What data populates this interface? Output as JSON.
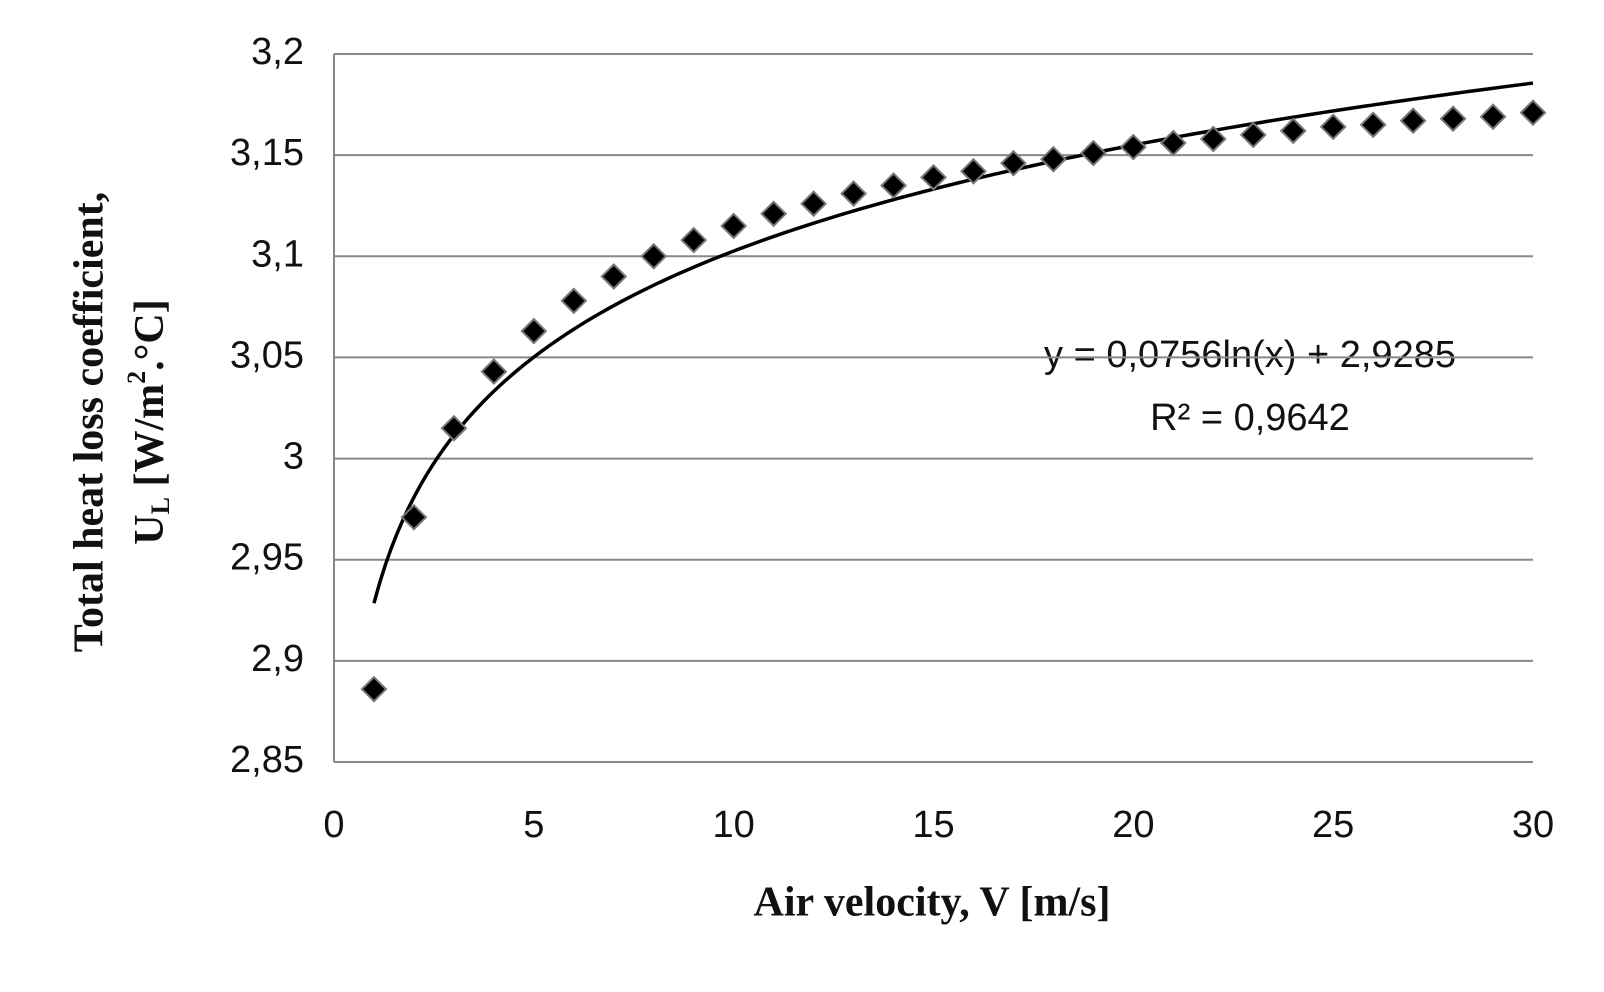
{
  "chart_data": {
    "type": "scatter",
    "x_label": "Air velocity, V [m/s]",
    "y_label": {
      "line1": "Total heat loss coefficient,",
      "line2": [
        "U",
        "L",
        " [W/m",
        "2",
        ".°C]"
      ]
    },
    "x": [
      1,
      2,
      3,
      4,
      5,
      6,
      7,
      8,
      9,
      10,
      11,
      12,
      13,
      14,
      15,
      16,
      17,
      18,
      19,
      20,
      21,
      22,
      23,
      24,
      25,
      26,
      27,
      28,
      29,
      30
    ],
    "values": [
      2.886,
      2.971,
      3.015,
      3.043,
      3.063,
      3.078,
      3.09,
      3.1,
      3.108,
      3.115,
      3.121,
      3.126,
      3.131,
      3.135,
      3.139,
      3.142,
      3.146,
      3.148,
      3.151,
      3.154,
      3.156,
      3.158,
      3.16,
      3.162,
      3.164,
      3.165,
      3.167,
      3.168,
      3.169,
      3.171
    ],
    "color": "#000000",
    "trendline": {
      "equation": "y = 0,0756ln(x) + 2,9285",
      "r2": "R² = 0,9642",
      "slope": 0.0756,
      "intercept": 2.9285
    },
    "xlim": [
      0,
      30
    ],
    "xticks": [
      0,
      5,
      10,
      15,
      20,
      25,
      30
    ],
    "ylim": [
      2.85,
      3.2
    ],
    "yticks": [
      {
        "value": 2.85,
        "label": "2,85"
      },
      {
        "value": 2.9,
        "label": "2,9"
      },
      {
        "value": 2.95,
        "label": "2,95"
      },
      3,
      {
        "value": 3.05,
        "label": "3,05"
      },
      {
        "value": 3.1,
        "label": "3,1"
      },
      {
        "value": 3.15,
        "label": "3,15"
      },
      {
        "value": 3.2,
        "label": "3,2"
      }
    ],
    "grid": true
  }
}
